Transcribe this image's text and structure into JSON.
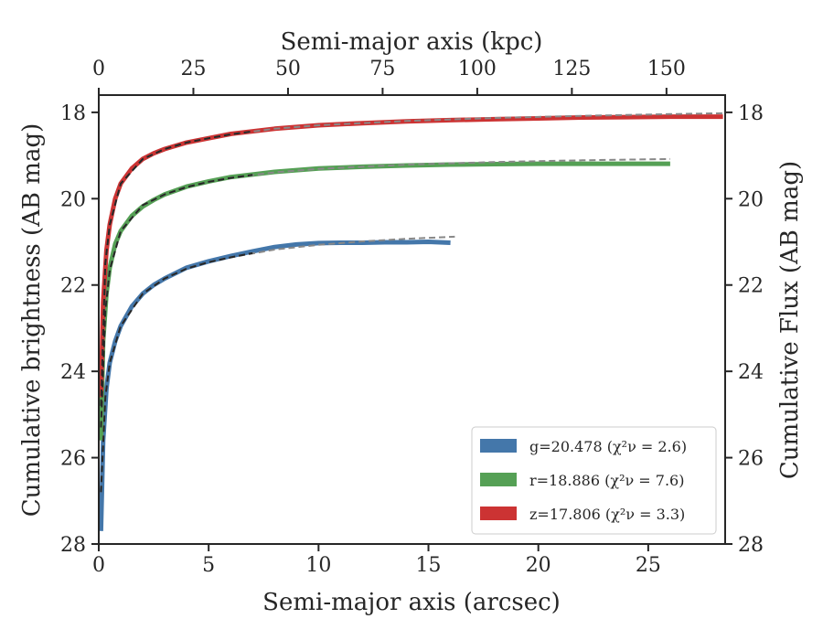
{
  "chart_data": {
    "type": "line",
    "xlabel": "Semi-major axis (arcsec)",
    "ylabel": "Cumulative brightness (AB mag)",
    "x2label": "Semi-major axis (kpc)",
    "y2label": "Cumulative Flux (AB mag)",
    "xlim": [
      0,
      28.5
    ],
    "ylim": [
      28,
      17.6
    ],
    "y_inverted": true,
    "x2lim": [
      0,
      165.5
    ],
    "xticks": [
      0,
      5,
      10,
      15,
      20,
      25
    ],
    "yticks": [
      18,
      20,
      22,
      24,
      26,
      28
    ],
    "x2ticks": [
      0,
      25,
      50,
      75,
      100,
      125,
      150
    ],
    "grid": false,
    "legend_position": "lower-right",
    "series": [
      {
        "name": "g=20.478 (χ²ν = 2.6)",
        "color": "#4477aa",
        "x": [
          0.1,
          0.2,
          0.35,
          0.5,
          0.75,
          1.0,
          1.5,
          2.0,
          2.5,
          3.0,
          4.0,
          5.0,
          6.0,
          7.0,
          8.0,
          9.0,
          10.0,
          11.0,
          12.0,
          13.0,
          14.0,
          15.0,
          16.0
        ],
        "values": [
          27.7,
          25.6,
          24.4,
          23.8,
          23.3,
          22.95,
          22.5,
          22.2,
          22.0,
          21.85,
          21.6,
          21.45,
          21.33,
          21.22,
          21.12,
          21.06,
          21.03,
          21.02,
          21.02,
          21.01,
          21.01,
          21.0,
          21.02
        ]
      },
      {
        "name": "r=18.886 (χ²ν = 7.6)",
        "color": "#55a055",
        "x": [
          0.1,
          0.2,
          0.35,
          0.5,
          0.75,
          1.0,
          1.5,
          2.0,
          2.5,
          3.0,
          4.0,
          5.0,
          6.0,
          8.0,
          10.0,
          12.0,
          14.0,
          16.0,
          18.0,
          20.0,
          22.0,
          24.0,
          26.0
        ],
        "values": [
          25.6,
          23.3,
          22.2,
          21.6,
          21.05,
          20.75,
          20.4,
          20.18,
          20.03,
          19.9,
          19.72,
          19.6,
          19.5,
          19.38,
          19.3,
          19.26,
          19.23,
          19.21,
          19.2,
          19.19,
          19.19,
          19.19,
          19.19
        ]
      },
      {
        "name": "z=17.806 (χ²ν = 3.3)",
        "color": "#cc3333",
        "x": [
          0.1,
          0.2,
          0.35,
          0.5,
          0.75,
          1.0,
          1.5,
          2.0,
          2.5,
          3.0,
          4.0,
          5.0,
          6.0,
          8.0,
          10.0,
          12.0,
          14.0,
          16.0,
          18.0,
          20.0,
          22.0,
          24.0,
          26.0,
          28.4
        ],
        "values": [
          24.6,
          22.4,
          21.2,
          20.6,
          20.0,
          19.65,
          19.3,
          19.08,
          18.95,
          18.85,
          18.7,
          18.6,
          18.5,
          18.38,
          18.3,
          18.25,
          18.21,
          18.18,
          18.16,
          18.14,
          18.12,
          18.11,
          18.1,
          18.1
        ]
      }
    ],
    "model_curves": [
      {
        "style": "dashed",
        "color": "#888888",
        "x": [
          0.1,
          0.3,
          0.5,
          1.0,
          2.0,
          3.0,
          4.0,
          5.0,
          6.0,
          8.0,
          10.0,
          12.0,
          14.0,
          16.2
        ],
        "values": [
          26.8,
          24.6,
          23.8,
          22.95,
          22.2,
          21.85,
          21.62,
          21.47,
          21.36,
          21.18,
          21.07,
          20.99,
          20.93,
          20.88
        ]
      },
      {
        "style": "dashed",
        "color": "#888888",
        "x": [
          0.1,
          0.3,
          0.5,
          1.0,
          2.0,
          3.0,
          4.0,
          5.0,
          6.0,
          8.0,
          10.0,
          14.0,
          18.0,
          22.0,
          26.0
        ],
        "values": [
          25.3,
          22.6,
          21.65,
          20.75,
          20.15,
          19.9,
          19.73,
          19.61,
          19.52,
          19.39,
          19.31,
          19.21,
          19.15,
          19.11,
          19.08
        ]
      },
      {
        "style": "dashed",
        "color": "#888888",
        "x": [
          0.1,
          0.3,
          0.5,
          1.0,
          2.0,
          3.0,
          4.0,
          5.0,
          6.0,
          8.0,
          10.0,
          14.0,
          18.0,
          22.0,
          26.0,
          28.5
        ],
        "values": [
          24.8,
          21.5,
          20.6,
          19.65,
          19.08,
          18.85,
          18.7,
          18.6,
          18.51,
          18.38,
          18.3,
          18.2,
          18.13,
          18.08,
          18.04,
          18.02
        ]
      },
      {
        "style": "dashed",
        "color": "#262626",
        "x": [
          0.1,
          0.3,
          0.5,
          1.0,
          2.0,
          3.0,
          4.0,
          5.0,
          6.0,
          7.0
        ],
        "values": [
          26.8,
          24.6,
          23.8,
          22.95,
          22.2,
          21.85,
          21.62,
          21.47,
          21.36,
          21.26
        ]
      },
      {
        "style": "dashed",
        "color": "#262626",
        "x": [
          0.1,
          0.3,
          0.5,
          1.0,
          2.0,
          3.0,
          4.0,
          5.0,
          6.0,
          7.0
        ],
        "values": [
          25.3,
          22.6,
          21.65,
          20.75,
          20.15,
          19.9,
          19.73,
          19.61,
          19.52,
          19.45
        ]
      },
      {
        "style": "dashed",
        "color": "#262626",
        "x": [
          0.1,
          0.3,
          0.5,
          1.0,
          2.0,
          3.0,
          4.0,
          5.0,
          6.0,
          7.0
        ],
        "values": [
          24.8,
          21.5,
          20.6,
          19.65,
          19.08,
          18.85,
          18.7,
          18.6,
          18.51,
          18.44
        ]
      }
    ]
  }
}
